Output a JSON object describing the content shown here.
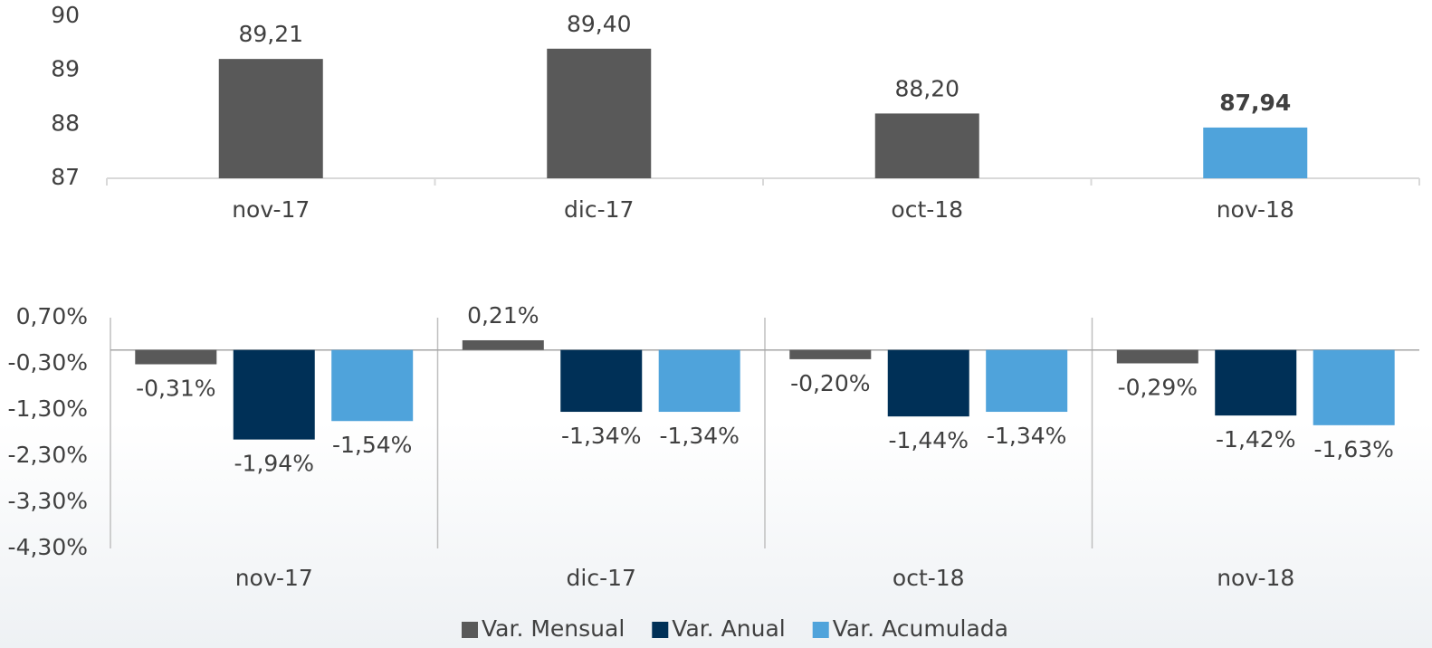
{
  "chart_data": [
    {
      "type": "bar",
      "categories": [
        "nov-17",
        "dic-17",
        "oct-18",
        "nov-18"
      ],
      "values": [
        89.21,
        89.4,
        88.2,
        87.94
      ],
      "value_labels": [
        "89,21",
        "89,40",
        "88,20",
        "87,94"
      ],
      "colors": [
        "#595959",
        "#595959",
        "#595959",
        "#4fa3db"
      ],
      "value_label_bold": [
        false,
        false,
        false,
        true
      ],
      "ylim": [
        87,
        90
      ],
      "yticks": [
        87,
        88,
        89,
        90
      ],
      "grid": false
    },
    {
      "type": "grouped_bar",
      "categories": [
        "nov-17",
        "dic-17",
        "oct-18",
        "nov-18"
      ],
      "series": [
        {
          "name": "Var. Mensual",
          "color": "#595959",
          "values": [
            -0.31,
            0.21,
            -0.2,
            -0.29
          ],
          "value_labels": [
            "-0,31%",
            "0,21%",
            "-0,20%",
            "-0,29%"
          ]
        },
        {
          "name": "Var. Anual",
          "color": "#003057",
          "values": [
            -1.94,
            -1.34,
            -1.44,
            -1.42
          ],
          "value_labels": [
            "-1,94%",
            "-1,34%",
            "-1,44%",
            "-1,42%"
          ]
        },
        {
          "name": "Var. Acumulada",
          "color": "#4fa3db",
          "values": [
            -1.54,
            -1.34,
            -1.34,
            -1.63
          ],
          "value_labels": [
            "-1,54%",
            "-1,34%",
            "-1,34%",
            "-1,63%"
          ]
        }
      ],
      "ylim": [
        -4.3,
        0.7
      ],
      "yticks": [
        {
          "value": 0.7,
          "label": "0,70%"
        },
        {
          "value": -0.3,
          "label": "-0,30%"
        },
        {
          "value": -1.3,
          "label": "-1,30%"
        },
        {
          "value": -2.3,
          "label": "-2,30%"
        },
        {
          "value": -3.3,
          "label": "-3,30%"
        },
        {
          "value": -4.3,
          "label": "-4,30%"
        }
      ],
      "legend": "bottom",
      "grid": false
    }
  ]
}
